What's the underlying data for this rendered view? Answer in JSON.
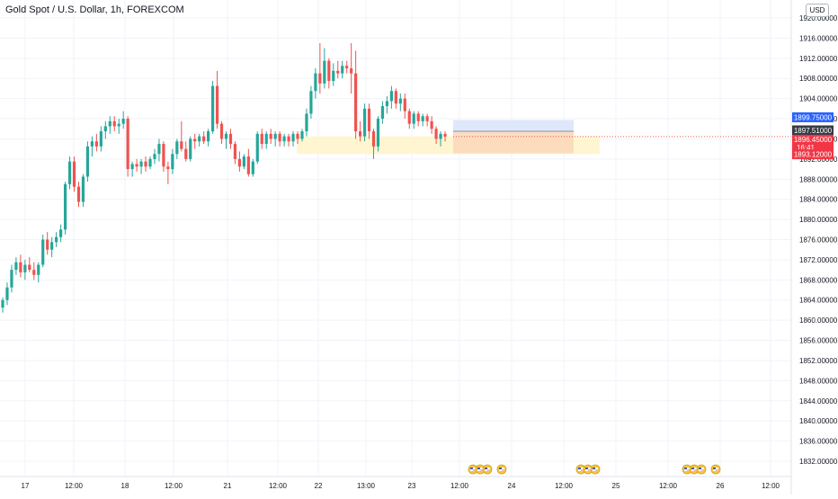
{
  "header": {
    "title": "Gold Spot / U.S. Dollar, 1h, FOREXCOM",
    "currency": "USD"
  },
  "colors": {
    "up": "#26a69a",
    "down": "#ef5350",
    "axis_text": "#131722",
    "grid": "#f0f3fa",
    "target_zone": "#dbe5fb",
    "stop_zone": "#fbd7b9",
    "demand_zone": "#fff6d1",
    "label_blue": "#2962ff",
    "label_dark": "#363a45",
    "label_red": "#f23645",
    "event_icon": "#f5c542"
  },
  "chart_data": {
    "type": "candlestick",
    "symbol": "Gold Spot / U.S. Dollar",
    "interval": "1h",
    "exchange": "FOREXCOM",
    "ylim": [
      1830,
      1922
    ],
    "y_ticks": [
      "1920.00000",
      "1916.00000",
      "1912.00000",
      "1908.00000",
      "1904.00000",
      "1900.00000",
      "1896.00000",
      "1892.00000",
      "1888.00000",
      "1884.00000",
      "1880.00000",
      "1876.00000",
      "1872.00000",
      "1868.00000",
      "1864.00000",
      "1860.00000",
      "1856.00000",
      "1852.00000",
      "1848.00000",
      "1844.00000",
      "1840.00000",
      "1836.00000",
      "1832.00000"
    ],
    "x_ticks": [
      "17",
      "12:00",
      "18",
      "12:00",
      "21",
      "12:00",
      "22",
      "13:00",
      "23",
      "12:00",
      "24",
      "12:00",
      "25",
      "12:00",
      "26",
      "12:00"
    ],
    "price_labels": {
      "target": "1899.75000",
      "entry": "1897.51000",
      "current": "1896.45000",
      "countdown": "16:41",
      "stop": "1893.12000"
    },
    "position": {
      "type": "long",
      "entry": 1897.51,
      "target": 1899.75,
      "stop": 1893.12
    },
    "demand_zone": {
      "top": 1896.5,
      "bottom": 1893.0
    },
    "candles": [
      {
        "o": 1862.5,
        "h": 1864.5,
        "l": 1861.5,
        "c": 1864.0
      },
      {
        "o": 1864.0,
        "h": 1867.5,
        "l": 1863.0,
        "c": 1866.5
      },
      {
        "o": 1866.5,
        "h": 1871.0,
        "l": 1865.5,
        "c": 1870.0
      },
      {
        "o": 1870.0,
        "h": 1872.5,
        "l": 1869.0,
        "c": 1871.5
      },
      {
        "o": 1871.5,
        "h": 1873.0,
        "l": 1868.5,
        "c": 1869.5
      },
      {
        "o": 1869.5,
        "h": 1872.0,
        "l": 1868.0,
        "c": 1871.0
      },
      {
        "o": 1871.0,
        "h": 1872.5,
        "l": 1869.5,
        "c": 1870.0
      },
      {
        "o": 1870.0,
        "h": 1871.5,
        "l": 1868.0,
        "c": 1869.0
      },
      {
        "o": 1869.0,
        "h": 1871.5,
        "l": 1867.5,
        "c": 1871.0
      },
      {
        "o": 1871.0,
        "h": 1877.0,
        "l": 1870.5,
        "c": 1876.0
      },
      {
        "o": 1876.0,
        "h": 1877.5,
        "l": 1873.0,
        "c": 1874.0
      },
      {
        "o": 1874.0,
        "h": 1876.5,
        "l": 1872.5,
        "c": 1875.5
      },
      {
        "o": 1875.5,
        "h": 1877.5,
        "l": 1874.5,
        "c": 1876.5
      },
      {
        "o": 1876.5,
        "h": 1879.0,
        "l": 1875.5,
        "c": 1878.0
      },
      {
        "o": 1878.0,
        "h": 1887.5,
        "l": 1877.0,
        "c": 1887.0
      },
      {
        "o": 1887.0,
        "h": 1892.5,
        "l": 1886.0,
        "c": 1891.5
      },
      {
        "o": 1891.5,
        "h": 1892.5,
        "l": 1885.5,
        "c": 1886.5
      },
      {
        "o": 1886.5,
        "h": 1887.5,
        "l": 1882.5,
        "c": 1883.5
      },
      {
        "o": 1883.5,
        "h": 1889.0,
        "l": 1882.5,
        "c": 1888.5
      },
      {
        "o": 1888.5,
        "h": 1895.5,
        "l": 1887.5,
        "c": 1894.5
      },
      {
        "o": 1894.5,
        "h": 1896.5,
        "l": 1892.5,
        "c": 1895.5
      },
      {
        "o": 1895.5,
        "h": 1897.0,
        "l": 1893.5,
        "c": 1894.5
      },
      {
        "o": 1894.5,
        "h": 1898.5,
        "l": 1893.5,
        "c": 1897.5
      },
      {
        "o": 1897.5,
        "h": 1899.5,
        "l": 1896.0,
        "c": 1898.5
      },
      {
        "o": 1898.5,
        "h": 1900.5,
        "l": 1897.0,
        "c": 1899.5
      },
      {
        "o": 1899.5,
        "h": 1900.5,
        "l": 1897.5,
        "c": 1898.5
      },
      {
        "o": 1898.5,
        "h": 1900.0,
        "l": 1897.0,
        "c": 1899.0
      },
      {
        "o": 1899.0,
        "h": 1901.5,
        "l": 1898.0,
        "c": 1900.0
      },
      {
        "o": 1900.0,
        "h": 1900.5,
        "l": 1888.5,
        "c": 1890.0
      },
      {
        "o": 1890.0,
        "h": 1891.5,
        "l": 1888.5,
        "c": 1891.0
      },
      {
        "o": 1891.0,
        "h": 1892.0,
        "l": 1889.5,
        "c": 1890.5
      },
      {
        "o": 1890.5,
        "h": 1892.0,
        "l": 1889.0,
        "c": 1891.5
      },
      {
        "o": 1891.5,
        "h": 1892.5,
        "l": 1889.5,
        "c": 1890.5
      },
      {
        "o": 1890.5,
        "h": 1892.5,
        "l": 1890.0,
        "c": 1892.0
      },
      {
        "o": 1892.0,
        "h": 1894.0,
        "l": 1891.0,
        "c": 1893.0
      },
      {
        "o": 1893.0,
        "h": 1896.0,
        "l": 1891.5,
        "c": 1895.0
      },
      {
        "o": 1895.0,
        "h": 1895.5,
        "l": 1889.5,
        "c": 1890.5
      },
      {
        "o": 1890.5,
        "h": 1891.5,
        "l": 1887.0,
        "c": 1890.0
      },
      {
        "o": 1890.0,
        "h": 1894.0,
        "l": 1889.0,
        "c": 1893.0
      },
      {
        "o": 1893.0,
        "h": 1896.0,
        "l": 1892.0,
        "c": 1895.5
      },
      {
        "o": 1895.5,
        "h": 1899.5,
        "l": 1893.5,
        "c": 1894.0
      },
      {
        "o": 1894.0,
        "h": 1895.5,
        "l": 1891.5,
        "c": 1892.0
      },
      {
        "o": 1892.0,
        "h": 1896.5,
        "l": 1891.5,
        "c": 1896.0
      },
      {
        "o": 1896.0,
        "h": 1897.0,
        "l": 1894.0,
        "c": 1895.5
      },
      {
        "o": 1895.5,
        "h": 1897.0,
        "l": 1894.5,
        "c": 1896.5
      },
      {
        "o": 1896.5,
        "h": 1897.5,
        "l": 1895.0,
        "c": 1895.5
      },
      {
        "o": 1895.5,
        "h": 1898.0,
        "l": 1894.5,
        "c": 1897.5
      },
      {
        "o": 1897.5,
        "h": 1907.5,
        "l": 1897.0,
        "c": 1906.5
      },
      {
        "o": 1906.5,
        "h": 1909.5,
        "l": 1898.0,
        "c": 1899.0
      },
      {
        "o": 1899.0,
        "h": 1899.5,
        "l": 1895.0,
        "c": 1896.0
      },
      {
        "o": 1896.0,
        "h": 1897.5,
        "l": 1894.0,
        "c": 1897.0
      },
      {
        "o": 1897.0,
        "h": 1898.0,
        "l": 1894.0,
        "c": 1895.0
      },
      {
        "o": 1895.0,
        "h": 1895.5,
        "l": 1891.0,
        "c": 1892.0
      },
      {
        "o": 1892.0,
        "h": 1893.5,
        "l": 1889.5,
        "c": 1890.5
      },
      {
        "o": 1890.5,
        "h": 1893.0,
        "l": 1890.0,
        "c": 1892.5
      },
      {
        "o": 1892.5,
        "h": 1894.0,
        "l": 1888.5,
        "c": 1889.0
      },
      {
        "o": 1889.0,
        "h": 1892.0,
        "l": 1888.5,
        "c": 1891.5
      },
      {
        "o": 1891.5,
        "h": 1897.5,
        "l": 1891.0,
        "c": 1897.0
      },
      {
        "o": 1897.0,
        "h": 1898.0,
        "l": 1894.0,
        "c": 1895.0
      },
      {
        "o": 1895.0,
        "h": 1897.5,
        "l": 1894.0,
        "c": 1897.0
      },
      {
        "o": 1897.0,
        "h": 1898.0,
        "l": 1895.0,
        "c": 1896.0
      },
      {
        "o": 1896.0,
        "h": 1897.5,
        "l": 1894.5,
        "c": 1897.0
      },
      {
        "o": 1897.0,
        "h": 1897.5,
        "l": 1894.5,
        "c": 1895.5
      },
      {
        "o": 1895.5,
        "h": 1897.0,
        "l": 1894.5,
        "c": 1896.5
      },
      {
        "o": 1896.5,
        "h": 1897.0,
        "l": 1894.5,
        "c": 1895.5
      },
      {
        "o": 1895.5,
        "h": 1897.5,
        "l": 1894.5,
        "c": 1897.0
      },
      {
        "o": 1897.0,
        "h": 1897.5,
        "l": 1895.0,
        "c": 1896.0
      },
      {
        "o": 1896.0,
        "h": 1898.0,
        "l": 1895.5,
        "c": 1897.5
      },
      {
        "o": 1897.5,
        "h": 1902.0,
        "l": 1896.5,
        "c": 1901.0
      },
      {
        "o": 1901.0,
        "h": 1906.5,
        "l": 1900.0,
        "c": 1905.5
      },
      {
        "o": 1905.5,
        "h": 1910.0,
        "l": 1904.0,
        "c": 1909.0
      },
      {
        "o": 1909.0,
        "h": 1915.0,
        "l": 1905.0,
        "c": 1907.0
      },
      {
        "o": 1907.0,
        "h": 1914.0,
        "l": 1906.0,
        "c": 1911.5
      },
      {
        "o": 1911.5,
        "h": 1912.0,
        "l": 1906.0,
        "c": 1907.5
      },
      {
        "o": 1907.5,
        "h": 1911.0,
        "l": 1906.5,
        "c": 1909.5
      },
      {
        "o": 1909.5,
        "h": 1911.5,
        "l": 1908.0,
        "c": 1909.0
      },
      {
        "o": 1909.0,
        "h": 1911.5,
        "l": 1908.0,
        "c": 1910.5
      },
      {
        "o": 1910.5,
        "h": 1911.5,
        "l": 1909.0,
        "c": 1910.0
      },
      {
        "o": 1910.0,
        "h": 1915.0,
        "l": 1905.0,
        "c": 1909.0
      },
      {
        "o": 1909.0,
        "h": 1913.5,
        "l": 1896.0,
        "c": 1897.5
      },
      {
        "o": 1897.5,
        "h": 1899.5,
        "l": 1895.5,
        "c": 1896.5
      },
      {
        "o": 1896.5,
        "h": 1903.0,
        "l": 1895.5,
        "c": 1902.0
      },
      {
        "o": 1902.0,
        "h": 1903.0,
        "l": 1896.0,
        "c": 1897.5
      },
      {
        "o": 1897.5,
        "h": 1898.0,
        "l": 1892.0,
        "c": 1894.5
      },
      {
        "o": 1894.5,
        "h": 1900.5,
        "l": 1893.5,
        "c": 1900.0
      },
      {
        "o": 1900.0,
        "h": 1903.5,
        "l": 1899.0,
        "c": 1902.5
      },
      {
        "o": 1902.5,
        "h": 1904.5,
        "l": 1901.0,
        "c": 1903.5
      },
      {
        "o": 1903.5,
        "h": 1906.5,
        "l": 1902.0,
        "c": 1905.5
      },
      {
        "o": 1905.5,
        "h": 1906.0,
        "l": 1902.0,
        "c": 1903.0
      },
      {
        "o": 1903.0,
        "h": 1905.0,
        "l": 1901.5,
        "c": 1904.0
      },
      {
        "o": 1904.0,
        "h": 1905.0,
        "l": 1900.0,
        "c": 1901.5
      },
      {
        "o": 1901.5,
        "h": 1902.0,
        "l": 1898.0,
        "c": 1899.0
      },
      {
        "o": 1899.0,
        "h": 1901.5,
        "l": 1898.0,
        "c": 1901.0
      },
      {
        "o": 1901.0,
        "h": 1901.5,
        "l": 1898.5,
        "c": 1899.5
      },
      {
        "o": 1899.5,
        "h": 1901.0,
        "l": 1898.5,
        "c": 1900.5
      },
      {
        "o": 1900.5,
        "h": 1901.0,
        "l": 1898.5,
        "c": 1899.5
      },
      {
        "o": 1899.5,
        "h": 1900.5,
        "l": 1897.0,
        "c": 1898.0
      },
      {
        "o": 1898.0,
        "h": 1898.5,
        "l": 1895.0,
        "c": 1896.0
      },
      {
        "o": 1896.0,
        "h": 1897.5,
        "l": 1894.5,
        "c": 1897.0
      },
      {
        "o": 1897.0,
        "h": 1897.5,
        "l": 1895.5,
        "c": 1896.45
      }
    ],
    "events": [
      {
        "group": 1,
        "count": 4
      },
      {
        "group": 2,
        "count": 3
      },
      {
        "group": 3,
        "count": 4
      }
    ]
  }
}
